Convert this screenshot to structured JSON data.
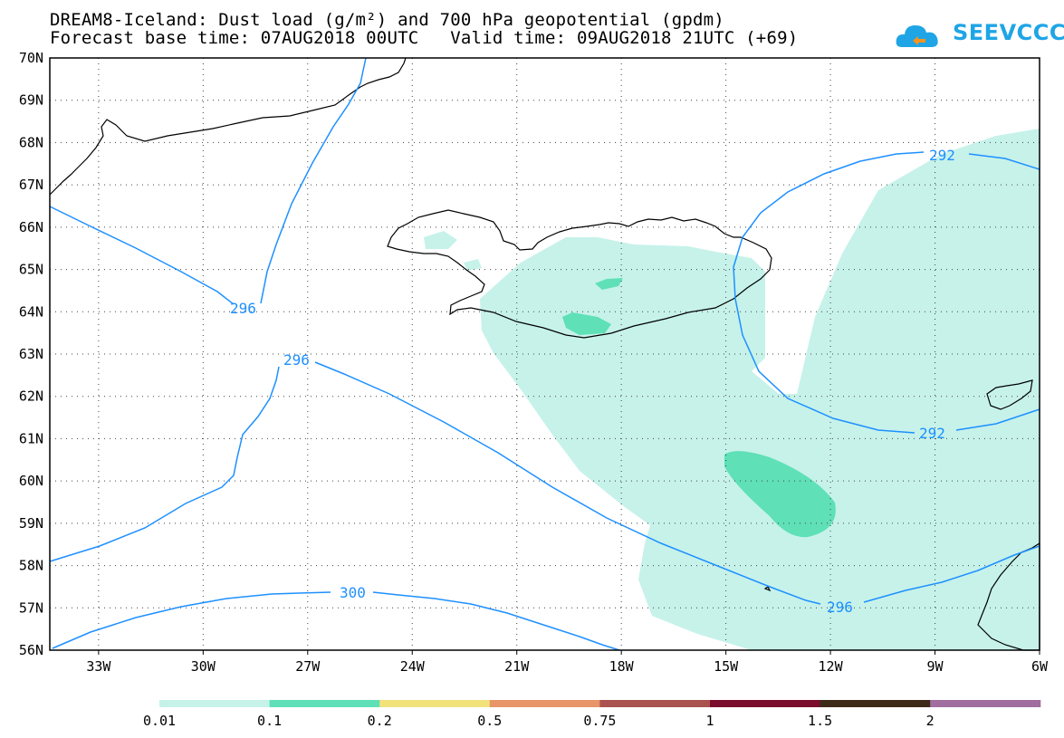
{
  "title": {
    "line1": "DREAM8-Iceland: Dust load (g/m²) and 700 hPa geopotential (gpdm)",
    "line2": "Forecast base time: 07AUG2018 00UTC   Valid time: 09AUG2018 21UTC (+69)"
  },
  "logo": {
    "text": "SEEVCCC"
  },
  "map": {
    "lat_range": [
      56,
      70
    ],
    "lon_range": [
      -34.4,
      -6
    ],
    "lat_labels": [
      "70N",
      "69N",
      "68N",
      "67N",
      "66N",
      "65N",
      "64N",
      "63N",
      "62N",
      "61N",
      "60N",
      "59N",
      "58N",
      "57N",
      "56N"
    ],
    "lon_labels": [
      "33W",
      "30W",
      "27W",
      "24W",
      "21W",
      "18W",
      "15W",
      "12W",
      "9W",
      "6W"
    ],
    "grid": "dotted",
    "contour_color": "#1e90ff",
    "contour_labels": [
      "296",
      "296",
      "292",
      "292",
      "300",
      "296"
    ]
  },
  "colorbar": {
    "labels": [
      "0.01",
      "0.1",
      "0.2",
      "0.5",
      "0.75",
      "1",
      "1.5",
      "2"
    ],
    "colors": [
      "#c6f2ea",
      "#5fe0b6",
      "#f2e27a",
      "#e8956a",
      "#a9524f",
      "#7b0d2c",
      "#3e2a19",
      "#a06fa0"
    ]
  }
}
